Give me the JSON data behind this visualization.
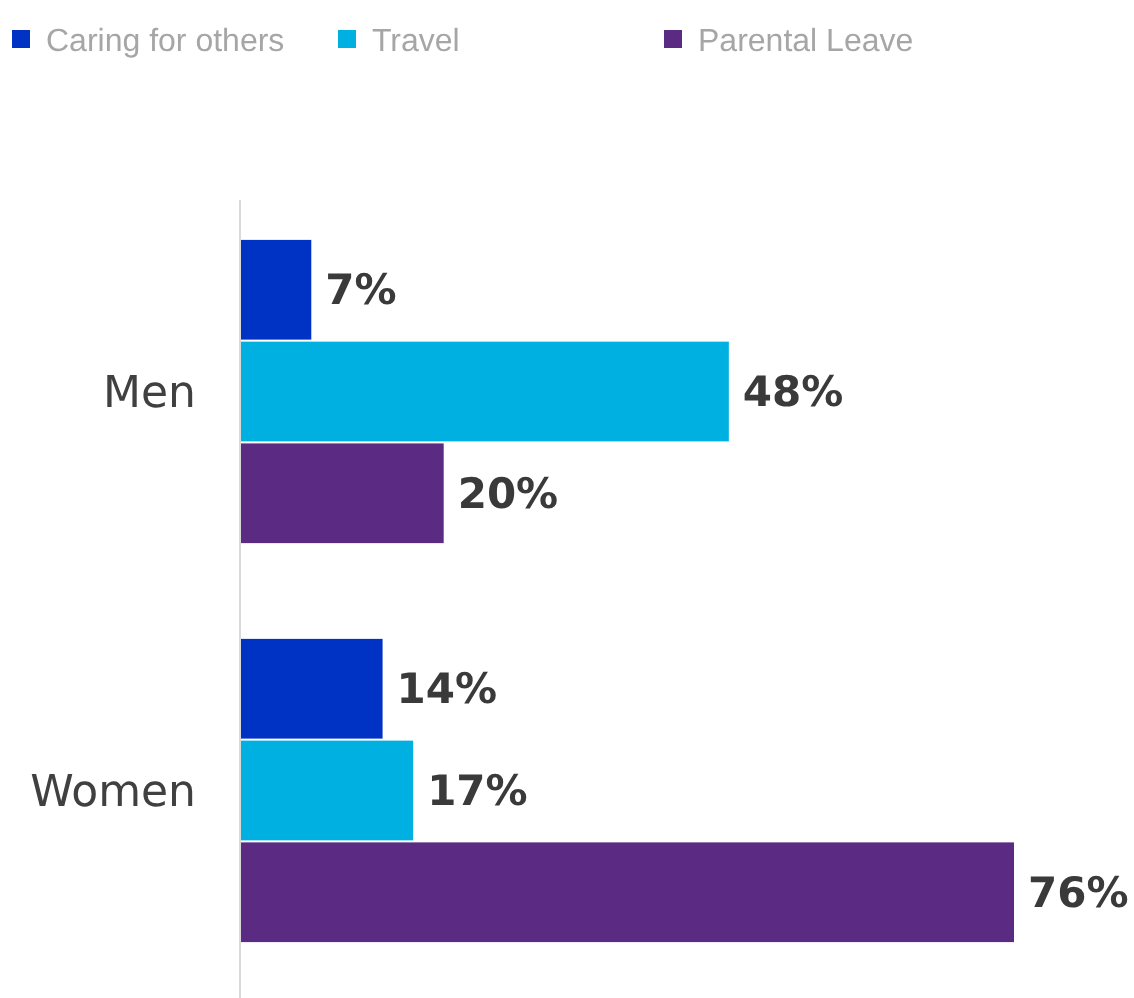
{
  "chart_data": {
    "type": "bar",
    "orientation": "horizontal",
    "categories": [
      "Men",
      "Women"
    ],
    "series": [
      {
        "name": "Caring for others",
        "color": "#0033c4",
        "values": [
          7,
          14
        ],
        "value_labels": [
          "7%",
          "14%"
        ]
      },
      {
        "name": "Travel",
        "color": "#00b0e0",
        "values": [
          48,
          17
        ],
        "value_labels": [
          "48%",
          "17%"
        ]
      },
      {
        "name": "Parental Leave",
        "color": "#5b2a83",
        "values": [
          20,
          76
        ],
        "value_labels": [
          "20%",
          "76%"
        ]
      }
    ],
    "legend": "top left"
  }
}
